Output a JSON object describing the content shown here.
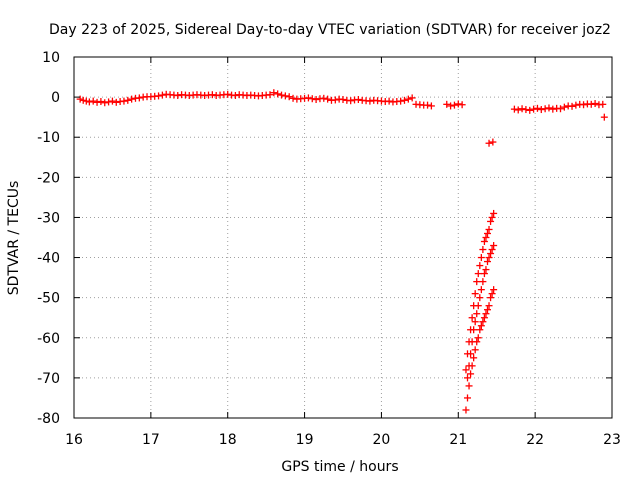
{
  "chart_data": {
    "type": "scatter",
    "title": "Day 223 of 2025, Sidereal Day-to-day VTEC variation (SDTVAR) for receiver joz2",
    "xlabel": "GPS time / hours",
    "ylabel": "SDTVAR / TECUs",
    "xlim": [
      16,
      23
    ],
    "ylim": [
      -80,
      10
    ],
    "xticks": [
      "16",
      "17",
      "18",
      "19",
      "20",
      "21",
      "22",
      "23"
    ],
    "yticks": [
      "10",
      "0",
      "-10",
      "-20",
      "-30",
      "-40",
      "-50",
      "-60",
      "-70",
      "-80"
    ],
    "grid": true,
    "marker": "+",
    "color": "#ff0000",
    "series": [
      {
        "x": [
          16.08,
          16.12,
          16.16,
          16.2,
          16.25,
          16.3,
          16.35,
          16.4,
          16.45,
          16.5,
          16.55,
          16.6,
          16.65,
          16.7,
          16.75,
          16.8,
          16.85,
          16.9,
          16.95,
          17.0,
          17.05,
          17.1,
          17.15,
          17.2,
          17.25,
          17.3,
          17.35,
          17.4,
          17.45,
          17.5,
          17.55,
          17.6,
          17.65,
          17.7,
          17.75,
          17.8,
          17.85,
          17.9,
          17.95,
          18.0,
          18.05,
          18.1,
          18.15,
          18.2,
          18.25,
          18.3,
          18.35,
          18.4,
          18.45,
          18.5,
          18.55,
          18.6,
          18.65,
          18.7,
          18.75,
          18.8,
          18.85,
          18.9,
          18.95,
          19.0,
          19.05,
          19.1,
          19.15,
          19.2,
          19.25,
          19.3,
          19.35,
          19.4,
          19.45,
          19.5,
          19.55,
          19.6,
          19.65,
          19.7,
          19.75,
          19.8,
          19.85,
          19.9,
          19.95,
          20.0,
          20.05,
          20.1,
          20.15,
          20.2,
          20.25,
          20.3,
          20.35,
          20.4,
          20.45,
          20.5,
          20.55,
          20.6,
          20.65,
          20.85,
          20.9,
          20.95,
          21.0,
          21.05,
          21.4,
          21.45,
          21.73,
          21.78,
          21.83,
          21.88,
          21.93,
          21.98,
          22.03,
          22.08,
          22.13,
          22.18,
          22.23,
          22.28,
          22.33,
          22.38,
          22.43,
          22.48,
          22.53,
          22.58,
          22.63,
          22.68,
          22.73,
          22.78,
          22.83,
          22.88,
          22.9
        ],
        "y": [
          -0.5,
          -0.8,
          -1.0,
          -1.2,
          -1.0,
          -1.3,
          -1.1,
          -1.4,
          -1.2,
          -1.0,
          -1.3,
          -1.1,
          -1.0,
          -0.8,
          -0.5,
          -0.3,
          -0.2,
          0.0,
          0.1,
          0.1,
          0.2,
          0.3,
          0.5,
          0.7,
          0.6,
          0.5,
          0.4,
          0.6,
          0.5,
          0.4,
          0.5,
          0.6,
          0.5,
          0.4,
          0.5,
          0.6,
          0.4,
          0.5,
          0.6,
          0.7,
          0.5,
          0.4,
          0.6,
          0.5,
          0.4,
          0.5,
          0.4,
          0.3,
          0.4,
          0.5,
          0.6,
          1.1,
          0.8,
          0.5,
          0.3,
          0.1,
          -0.3,
          -0.5,
          -0.4,
          -0.3,
          -0.2,
          -0.4,
          -0.6,
          -0.4,
          -0.3,
          -0.5,
          -0.8,
          -0.7,
          -0.5,
          -0.6,
          -0.8,
          -0.9,
          -0.7,
          -0.6,
          -0.8,
          -0.9,
          -1.0,
          -0.8,
          -0.9,
          -1.0,
          -1.1,
          -1.0,
          -1.2,
          -1.1,
          -1.0,
          -0.8,
          -0.5,
          -0.2,
          -1.8,
          -1.9,
          -2.0,
          -2.0,
          -2.2,
          -1.8,
          -2.2,
          -2.0,
          -1.7,
          -1.9,
          -11.5,
          -11.2,
          -3.0,
          -3.2,
          -2.9,
          -3.1,
          -3.3,
          -3.0,
          -2.8,
          -3.1,
          -2.9,
          -2.7,
          -3.0,
          -2.8,
          -2.9,
          -2.5,
          -2.2,
          -2.3,
          -2.0,
          -1.8,
          -1.9,
          -1.7,
          -1.8,
          -1.6,
          -1.9,
          -1.8,
          -5.0
        ]
      },
      {
        "x": [
          21.1,
          21.12,
          21.14,
          21.16,
          21.18,
          21.2,
          21.22,
          21.24,
          21.26,
          21.28,
          21.3,
          21.32,
          21.34,
          21.36,
          21.38,
          21.4,
          21.42,
          21.44,
          21.46
        ],
        "y": [
          -68,
          -64,
          -61,
          -58,
          -55,
          -52,
          -49,
          -46,
          -44,
          -42,
          -40,
          -38,
          -36,
          -35,
          -34,
          -33,
          -31,
          -30,
          -29
        ]
      },
      {
        "x": [
          21.12,
          21.14,
          21.16,
          21.18,
          21.2,
          21.22,
          21.24,
          21.26,
          21.28,
          21.3,
          21.32,
          21.34,
          21.36,
          21.38,
          21.4,
          21.42,
          21.44,
          21.46
        ],
        "y": [
          -70,
          -67,
          -64,
          -61,
          -58,
          -56,
          -54,
          -52,
          -50,
          -48,
          -46,
          -44,
          -43,
          -41,
          -40,
          -39,
          -38,
          -37
        ]
      },
      {
        "x": [
          21.1,
          21.12,
          21.14,
          21.16,
          21.18,
          21.2,
          21.22,
          21.24,
          21.26,
          21.28,
          21.3,
          21.32,
          21.34,
          21.36,
          21.38,
          21.4,
          21.42,
          21.44,
          21.46
        ],
        "y": [
          -78,
          -75,
          -72,
          -69,
          -67,
          -65,
          -63,
          -61,
          -60,
          -58,
          -57,
          -56,
          -55,
          -54,
          -53,
          -52,
          -50,
          -49,
          -48
        ]
      }
    ]
  }
}
